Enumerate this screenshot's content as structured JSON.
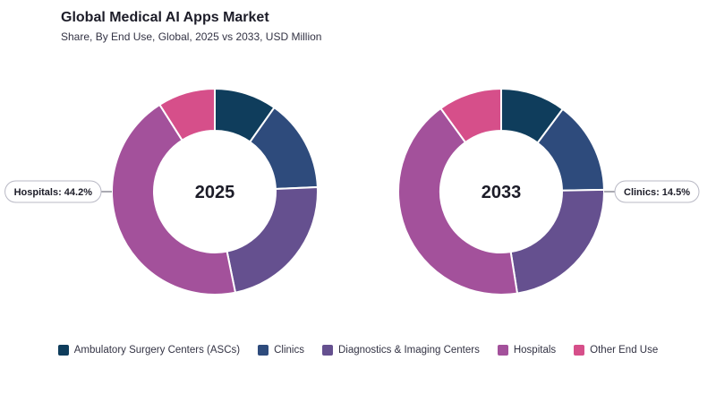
{
  "header": {
    "title": "Global Medical AI Apps Market",
    "subtitle": "Share, By End Use, Global, 2025 vs 2033, USD Million"
  },
  "colors": {
    "Ambulatory Surgery Centers (ASCs)": "#0f3d5c",
    "Clinics": "#2e4b7c",
    "Diagnostics & Imaging Centers": "#65508f",
    "Hospitals": "#a3519b",
    "Other End Use": "#d64f8a"
  },
  "chart_data": [
    {
      "type": "donut",
      "center_label": "2025",
      "categories": [
        "Ambulatory Surgery Centers (ASCs)",
        "Clinics",
        "Diagnostics & Imaging Centers",
        "Hospitals",
        "Other End Use"
      ],
      "values": [
        9.8,
        14.5,
        22.5,
        44.2,
        9.0
      ],
      "callout": {
        "category": "Hospitals",
        "text": "Hospitals: 44.2%",
        "side": "left"
      }
    },
    {
      "type": "donut",
      "center_label": "2033",
      "categories": [
        "Ambulatory Surgery Centers (ASCs)",
        "Clinics",
        "Diagnostics & Imaging Centers",
        "Hospitals",
        "Other End Use"
      ],
      "values": [
        10.2,
        14.5,
        22.8,
        42.5,
        10.0
      ],
      "callout": {
        "category": "Clinics",
        "text": "Clinics: 14.5%",
        "side": "right"
      }
    }
  ],
  "legend": [
    {
      "label": "Ambulatory Surgery Centers (ASCs)",
      "color": "#0f3d5c"
    },
    {
      "label": "Clinics",
      "color": "#2e4b7c"
    },
    {
      "label": "Diagnostics & Imaging Centers",
      "color": "#65508f"
    },
    {
      "label": "Hospitals",
      "color": "#a3519b"
    },
    {
      "label": "Other End Use",
      "color": "#d64f8a"
    }
  ]
}
